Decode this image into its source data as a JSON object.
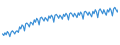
{
  "chart_data": {
    "type": "line",
    "color": "#3a8fd6",
    "tick_labels": false,
    "grid": false,
    "x": [
      0,
      1,
      2,
      3,
      4,
      5,
      6,
      7,
      8,
      9,
      10,
      11,
      12,
      13,
      14,
      15,
      16,
      17,
      18,
      19,
      20,
      21,
      22,
      23,
      24,
      25,
      26,
      27,
      28,
      29,
      30,
      31,
      32,
      33,
      34,
      35,
      36,
      37,
      38,
      39,
      40,
      41,
      42,
      43,
      44,
      45,
      46,
      47,
      48,
      49,
      50,
      51,
      52,
      53,
      54,
      55,
      56,
      57,
      58,
      59,
      60,
      61,
      62,
      63,
      64,
      65,
      66,
      67,
      68,
      69,
      70,
      71,
      72,
      73,
      74,
      75,
      76,
      77,
      78,
      79,
      80,
      81,
      82,
      83,
      84,
      85,
      86,
      87,
      88,
      89,
      90,
      91,
      92,
      93,
      94,
      95
    ],
    "values": [
      22,
      18,
      25,
      20,
      28,
      24,
      15,
      26,
      30,
      27,
      22,
      28,
      30,
      26,
      40,
      35,
      45,
      42,
      30,
      48,
      50,
      46,
      40,
      52,
      50,
      45,
      58,
      52,
      62,
      57,
      45,
      63,
      65,
      60,
      55,
      64,
      60,
      55,
      68,
      62,
      70,
      66,
      52,
      70,
      72,
      68,
      62,
      70,
      66,
      60,
      72,
      67,
      75,
      70,
      58,
      74,
      76,
      72,
      66,
      75,
      70,
      64,
      76,
      70,
      78,
      73,
      60,
      78,
      80,
      76,
      70,
      78,
      72,
      66,
      80,
      74,
      84,
      78,
      64,
      82,
      86,
      80,
      74,
      84,
      76,
      70,
      84,
      78,
      88,
      82,
      68,
      86,
      90,
      84,
      78,
      86
    ],
    "xlim": [
      0,
      95
    ],
    "ylim": [
      0,
      100
    ]
  }
}
